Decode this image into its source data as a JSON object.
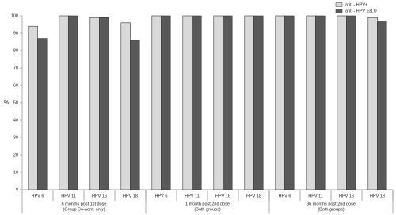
{
  "chart_data": {
    "type": "bar",
    "y_label": "%",
    "categories": [
      "HPV 6",
      "HPV 11",
      "HPV 16",
      "HPV 18",
      "HPV 6",
      "HPV 11",
      "HPV 16",
      "HPV 18",
      "HPV 6",
      "HPV 11",
      "HPV 16",
      "HPV 18"
    ],
    "groups": [
      {
        "label": "6 months post 1st dose",
        "sublabel": "(Group Co-adm. only)"
      },
      {
        "label": "1 month post 2nd dose",
        "sublabel": "(Both groups)"
      },
      {
        "label": "36 months post 2nd dose",
        "sublabel": "(Both groups)"
      }
    ],
    "series": [
      {
        "name": "anti - HPV+",
        "color": "#d9d9d9",
        "values": [
          94,
          100,
          99,
          96,
          100,
          100,
          100,
          100,
          100,
          100,
          100,
          99
        ]
      },
      {
        "name": "anti - HPV ≥3LU",
        "color": "#595959",
        "values": [
          87,
          100,
          99,
          86,
          100,
          100,
          100,
          100,
          100,
          100,
          100,
          97
        ]
      }
    ],
    "ylim": [
      0,
      100
    ],
    "yticks": [
      0,
      10,
      20,
      30,
      40,
      50,
      60,
      70,
      80,
      90,
      100
    ],
    "grid": false,
    "legend": "top-right"
  }
}
